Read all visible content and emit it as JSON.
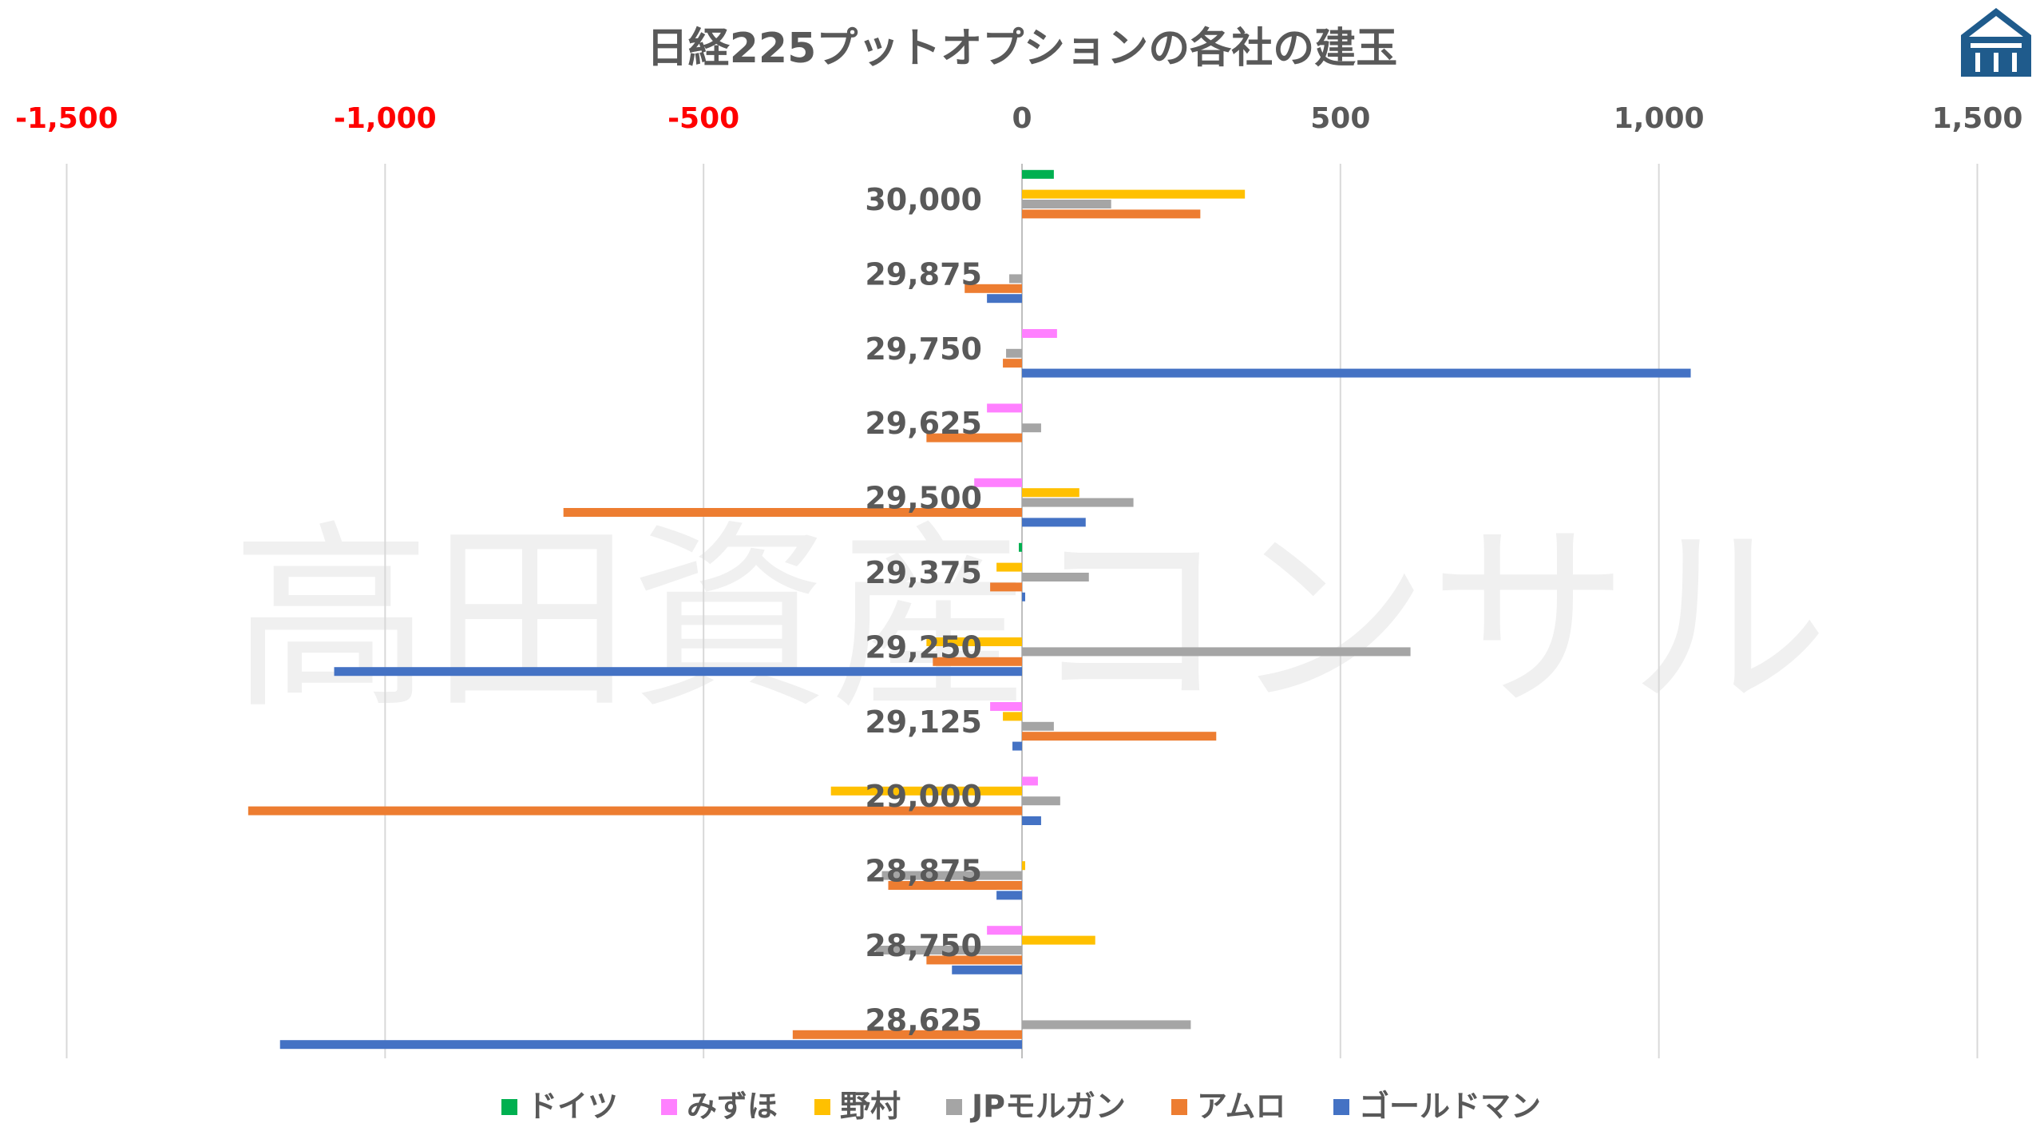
{
  "logo": {
    "name": "company-logo",
    "color": "#1f5b8c"
  },
  "watermark": "高田資産コンサル",
  "chart_data": {
    "type": "bar",
    "orientation": "horizontal",
    "title": "日経225プットオプションの各社の建玉",
    "xlabel": "",
    "ylabel": "",
    "xlim": [
      -1500,
      1500
    ],
    "x_ticks": [
      -1500,
      -1000,
      -500,
      0,
      500,
      1000,
      1500
    ],
    "x_tick_labels": [
      "-1,500",
      "-1,000",
      "-500",
      "0",
      "500",
      "1,000",
      "1,500"
    ],
    "negative_tick_color": "#ff0000",
    "positive_tick_color": "#595959",
    "grid": true,
    "legend_position": "bottom",
    "categories": [
      "30,000",
      "29,875",
      "29,750",
      "29,625",
      "29,500",
      "29,375",
      "29,250",
      "29,125",
      "29,000",
      "28,875",
      "28,750",
      "28,625"
    ],
    "series": [
      {
        "name": "ドイツ",
        "color": "#00b050",
        "values": [
          50,
          0,
          0,
          0,
          0,
          -5,
          0,
          0,
          0,
          0,
          0,
          0
        ]
      },
      {
        "name": "みずほ",
        "color": "#ff80ff",
        "values": [
          0,
          0,
          55,
          -55,
          -75,
          0,
          0,
          -50,
          25,
          0,
          -55,
          0
        ]
      },
      {
        "name": "野村",
        "color": "#ffc000",
        "values": [
          350,
          0,
          0,
          0,
          90,
          -40,
          -150,
          -30,
          -300,
          5,
          115,
          0
        ]
      },
      {
        "name": "JPモルガン",
        "color": "#a5a5a5",
        "values": [
          140,
          -20,
          -25,
          30,
          175,
          105,
          610,
          50,
          60,
          -220,
          -230,
          265
        ]
      },
      {
        "name": "アムロ",
        "color": "#ed7d31",
        "values": [
          280,
          -90,
          -30,
          -150,
          -720,
          -50,
          -140,
          305,
          -1215,
          -210,
          -150,
          -360
        ]
      },
      {
        "name": "ゴールドマン",
        "color": "#4472c4",
        "values": [
          0,
          -55,
          1050,
          0,
          100,
          5,
          -1080,
          -15,
          30,
          -40,
          -110,
          -1165
        ]
      }
    ]
  }
}
